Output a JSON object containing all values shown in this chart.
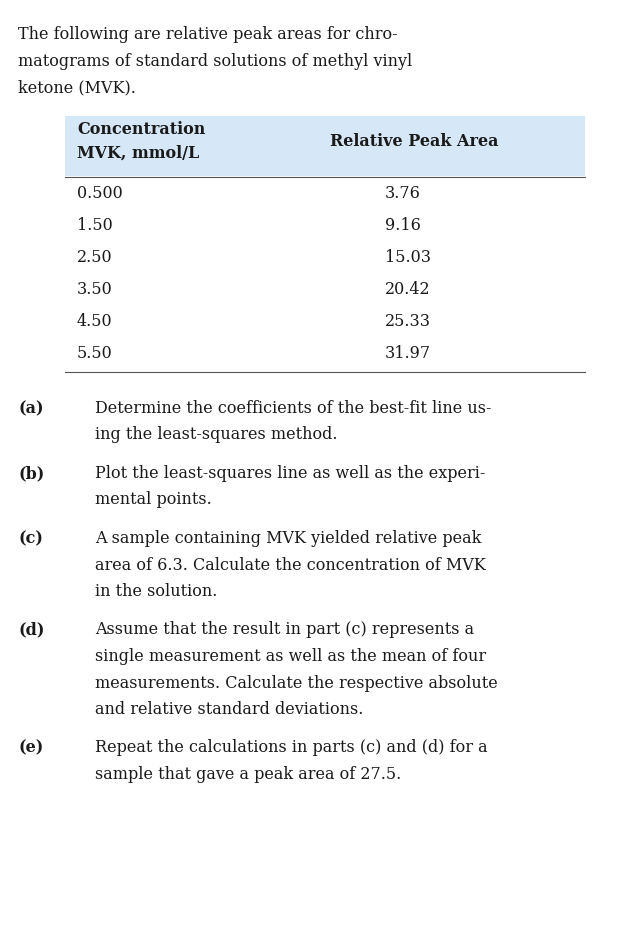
{
  "intro_text": "The following are relative peak areas for chro-\nmatograms of standard solutions of methyl vinyl\nketone (MVK).",
  "table_header_col1": "Concentration\nMVK, mmol/L",
  "table_header_col2": "Relative Peak Area",
  "table_data": [
    [
      "0.500",
      "3.76"
    ],
    [
      "1.50",
      "9.16"
    ],
    [
      "2.50",
      "15.03"
    ],
    [
      "3.50",
      "20.42"
    ],
    [
      "4.50",
      "25.33"
    ],
    [
      "5.50",
      "31.97"
    ]
  ],
  "questions": [
    [
      "(a)",
      "Determine the coefficients of the best-fit line us-\ning the least-squares method."
    ],
    [
      "(b)",
      "Plot the least-squares line as well as the experi-\nmental points."
    ],
    [
      "(c)",
      "A sample containing MVK yielded relative peak\narea of 6.3. Calculate the concentration of MVK\nin the solution."
    ],
    [
      "(d)",
      "Assume that the result in part (c) represents a\nsingle measurement as well as the mean of four\nmeasurements. Calculate the respective absolute\nand relative standard deviations."
    ],
    [
      "(e)",
      "Repeat the calculations in parts (c) and (d) for a\nsample that gave a peak area of 27.5."
    ]
  ],
  "bg_color": "#ffffff",
  "table_header_bg": "#d6e8f7",
  "table_body_bg": "#ffffff",
  "text_color": "#1a1a1a",
  "font_size": 11.5,
  "bold_font_size": 11.5
}
